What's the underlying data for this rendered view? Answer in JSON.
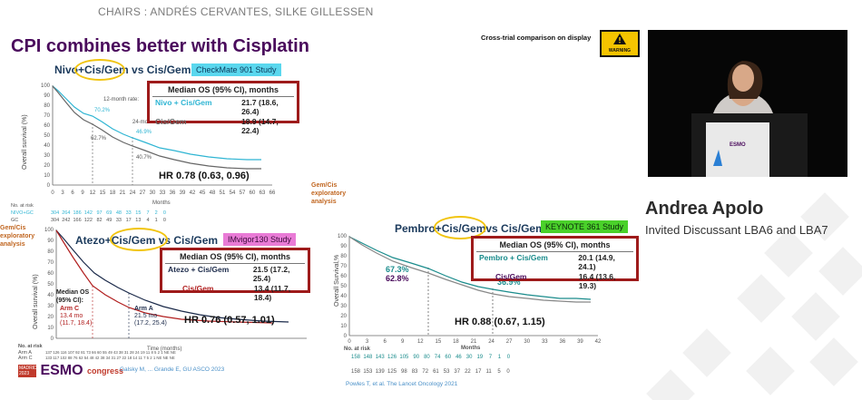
{
  "header": {
    "chairs": "CHAIRS : ANDRÉS CERVANTES, SILKE GILLESSEN"
  },
  "slide": {
    "title": "CPI combines better with Cisplatin",
    "cross_trial_note": "Cross-trial comparison on display",
    "warning_label": "WARNING"
  },
  "presenter": {
    "name": "Andrea Apolo",
    "role": "Invited Discussant LBA6 and LBA7",
    "video_screen_logo": "ESMO"
  },
  "checkmate": {
    "title_prefix": "Nivo+",
    "title_highlight": "Cis/Gem",
    "title_suffix": " vs Cis/Gem",
    "study_tag": "CheckMate 901 Study",
    "os_header": "Median OS (95% CI), months",
    "rows": [
      {
        "arm": "Nivo + Cis/Gem",
        "value": "21.7 (18.6, 26.4)",
        "color": "#2fb5d3"
      },
      {
        "arm": "Cis/Gem",
        "value": "18.9 (14.7, 22.4)",
        "color": "#666666"
      }
    ],
    "annotations": [
      "12-month rate:",
      "70.2%",
      "62.7%",
      "24-month rate:",
      "46.9%",
      "40.7%"
    ],
    "hr": "HR 0.78 (0.63, 0.96)",
    "ylabel": "Overall survival (%)",
    "xlabel": "Months",
    "yticks": [
      "100",
      "90",
      "80",
      "70",
      "60",
      "50",
      "40",
      "30",
      "20",
      "10",
      "0"
    ],
    "xticks": [
      "0",
      "3",
      "6",
      "9",
      "12",
      "15",
      "18",
      "21",
      "24",
      "27",
      "30",
      "33",
      "36",
      "39",
      "42",
      "45",
      "48",
      "51",
      "54",
      "57",
      "60",
      "63",
      "66"
    ],
    "risk_header": "No. at risk",
    "risk_rows": [
      {
        "label": "NIVO+GC",
        "values": "304  264  186  142   97   69   48   33   15    7    2    0",
        "color": "#2fb5d3"
      },
      {
        "label": "GC",
        "values": "304  242  166  122   82   49   33   17   13    4    1    0",
        "color": "#666666"
      }
    ]
  },
  "imvigor": {
    "title_prefix": "Atezo+",
    "title_highlight": "Cis/Gem",
    "title_suffix": " vs Cis/Gem",
    "study_tag": "IMvigor130 Study",
    "side_note": "Gem/Cis exploratory analysis",
    "os_header": "Median OS (95% CI), months",
    "rows": [
      {
        "arm": "Atezo + Cis/Gem",
        "value": "21.5 (17.2, 25.4)",
        "color": "#1b2a4a"
      },
      {
        "arm": "Cis/Gem",
        "value": "13.4 (11.7, 18.4)",
        "color": "#b11e1e"
      }
    ],
    "median_label": "Median OS (95% CI):",
    "arm_c": {
      "label": "Arm C",
      "value": "13.4 mo",
      "ci": "(11.7, 18.4)"
    },
    "arm_a": {
      "label": "Arm A",
      "value": "21.5 mo",
      "ci": "(17.2, 25.4)"
    },
    "hr": "HR 0.76 (0.57, 1.01)",
    "ylabel": "Overall survival (%)",
    "xlabel": "Time (months)",
    "yticks": [
      "100",
      "90",
      "80",
      "70",
      "60",
      "50",
      "40",
      "30",
      "20",
      "10",
      "0"
    ],
    "risk_header": "No. at risk",
    "risk_rows": [
      {
        "label": "Arm A",
        "values": "137 126 116 107 92 81 73 66 60 55 49 43 38 31 28 24 19 11 8 5 2 1 NE NE",
        "color": "#1b2a4a"
      },
      {
        "label": "Arm C",
        "values": "133 117 102 88 76 62 54 48 42 38 34 31 27 22 18 14 11 7 5 2 1 NE NE NE",
        "color": "#b11e1e"
      }
    ],
    "citation": "Galsky M, ... Grande E, GU ASCO 2023",
    "esmo_year": "MADRID 2023",
    "esmo_word": "ESMO",
    "esmo_congress": "congress"
  },
  "keynote": {
    "title_prefix": "Pembro+",
    "title_highlight": "Cis/Gem",
    "title_suffix": "vs Cis/Gem",
    "study_tag": "KEYNOTE 361 Study",
    "side_note": "Gem/Cis exploratory analysis",
    "os_header": "Median OS (95% CI), months",
    "rows": [
      {
        "arm": "Pembro + Cis/Gem",
        "value": "20.1 (14.9, 24.1)",
        "color": "#1a8c8c"
      },
      {
        "arm": "Cis/Gem",
        "value": "16.4 (13.6, 19.3)",
        "color": "#4a0b5c"
      }
    ],
    "rate_12_a": "67.3%",
    "rate_12_b": "62.8%",
    "rate_24_a": "36.9%",
    "hr": "HR 0.88 (0.67, 1.15)",
    "ylabel": "Overall Survival,%",
    "xlabel": "Months",
    "yticks": [
      "100",
      "90",
      "80",
      "70",
      "60",
      "50",
      "40",
      "30",
      "20",
      "10",
      "0"
    ],
    "xticks": [
      "0",
      "3",
      "6",
      "9",
      "12",
      "15",
      "18",
      "21",
      "24",
      "27",
      "30",
      "33",
      "36",
      "39",
      "42"
    ],
    "risk_header": "No. at risk",
    "risk_rows": [
      {
        "values": "158  148  143  126  105   90   80   74   60   46   30   19    7    1    0",
        "color": "#1a8c8c"
      },
      {
        "values": "158  153  139  125   98   83   72   61   53   37   22   17   11    5    0",
        "color": "#555555"
      }
    ],
    "citation": "Powles T, et al.  The Lancet Oncology 2021"
  }
}
